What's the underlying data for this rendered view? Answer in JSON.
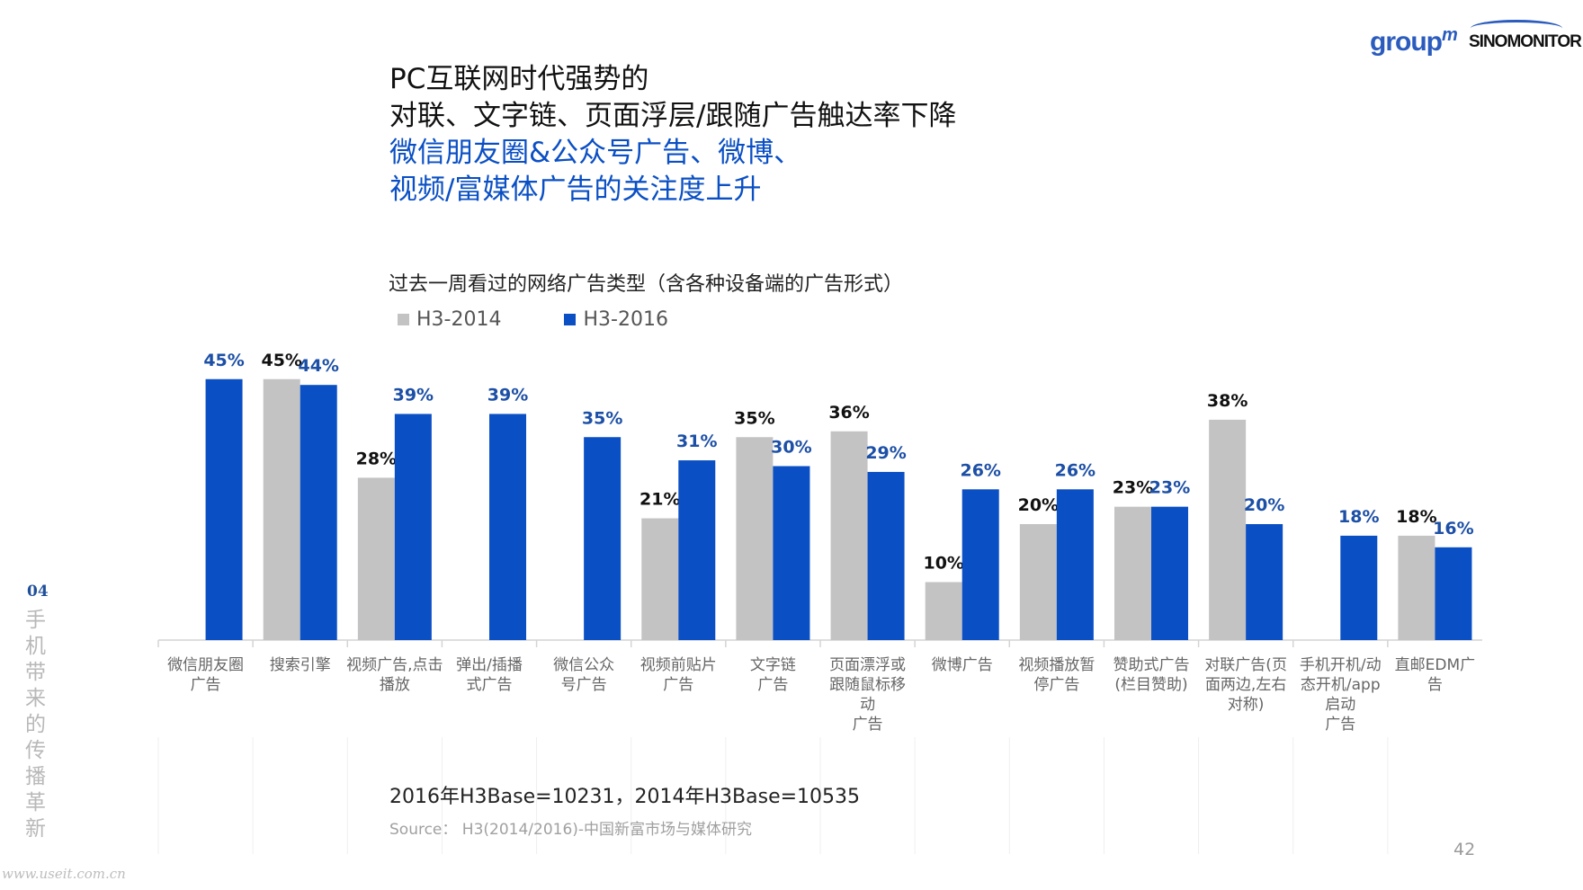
{
  "headline": {
    "line1": "PC互联网时代强势的",
    "line2": "对联、文字链、页面浮层/跟随广告触达率下降",
    "line3": "微信朋友圈&公众号广告、微博、",
    "line4": "视频/富媒体广告的关注度上升"
  },
  "logos": {
    "groupm": "group",
    "groupm_sup": "m",
    "sinomonitor": "SINOMONITOR"
  },
  "side": {
    "section_number": "04",
    "vertical_text": "手机带来的传播革新"
  },
  "footer": {
    "base_note": "2016年H3Base=10231，2014年H3Base=10535",
    "source": "Source： H3(2014/2016)-中国新富市场与媒体研究",
    "page_number": "42",
    "watermark": "www.useit.com.cn"
  },
  "colors": {
    "h3_2014": "#c3c3c3",
    "h3_2016": "#0a4fc4",
    "label_2014": "#111111",
    "label_2016": "#1c4fa6"
  },
  "chart_data": {
    "type": "bar",
    "title": "过去一周看过的网络广告类型（含各种设备端的广告形式）",
    "legend_position": "top-left",
    "grid": false,
    "ylim": [
      0,
      50
    ],
    "categories": [
      "微信朋友圈\n广告",
      "搜索引擎",
      "视频广告,点击\n播放",
      "弹出/插播\n式广告",
      "微信公众\n号广告",
      "视频前贴片\n广告",
      "文字链\n广告",
      "页面漂浮或\n跟随鼠标移\n动\n广告",
      "微博广告",
      "视频播放暂\n停广告",
      "赞助式广告\n(栏目赞助)",
      "对联广告(页\n面两边,左右\n对称)",
      "手机开机/动\n态开机/app\n启动\n广告",
      "直邮EDM广\n告"
    ],
    "series": [
      {
        "name": "H3-2014",
        "values": [
          null,
          45,
          28,
          null,
          null,
          21,
          35,
          36,
          10,
          20,
          23,
          38,
          null,
          18
        ]
      },
      {
        "name": "H3-2016",
        "values": [
          45,
          44,
          39,
          39,
          35,
          31,
          30,
          29,
          26,
          26,
          23,
          20,
          18,
          16
        ]
      }
    ],
    "value_labels": [
      [
        "",
        "45%",
        "28%",
        "",
        "",
        "21%",
        "35%",
        "36%",
        "10%",
        "20%",
        "23%",
        "38%",
        "",
        "18%"
      ],
      [
        "45%",
        "44%",
        "39%",
        "39%",
        "35%",
        "31%",
        "30%",
        "29%",
        "26%",
        "26%",
        "23%",
        "20%",
        "18%",
        "16%"
      ]
    ]
  }
}
